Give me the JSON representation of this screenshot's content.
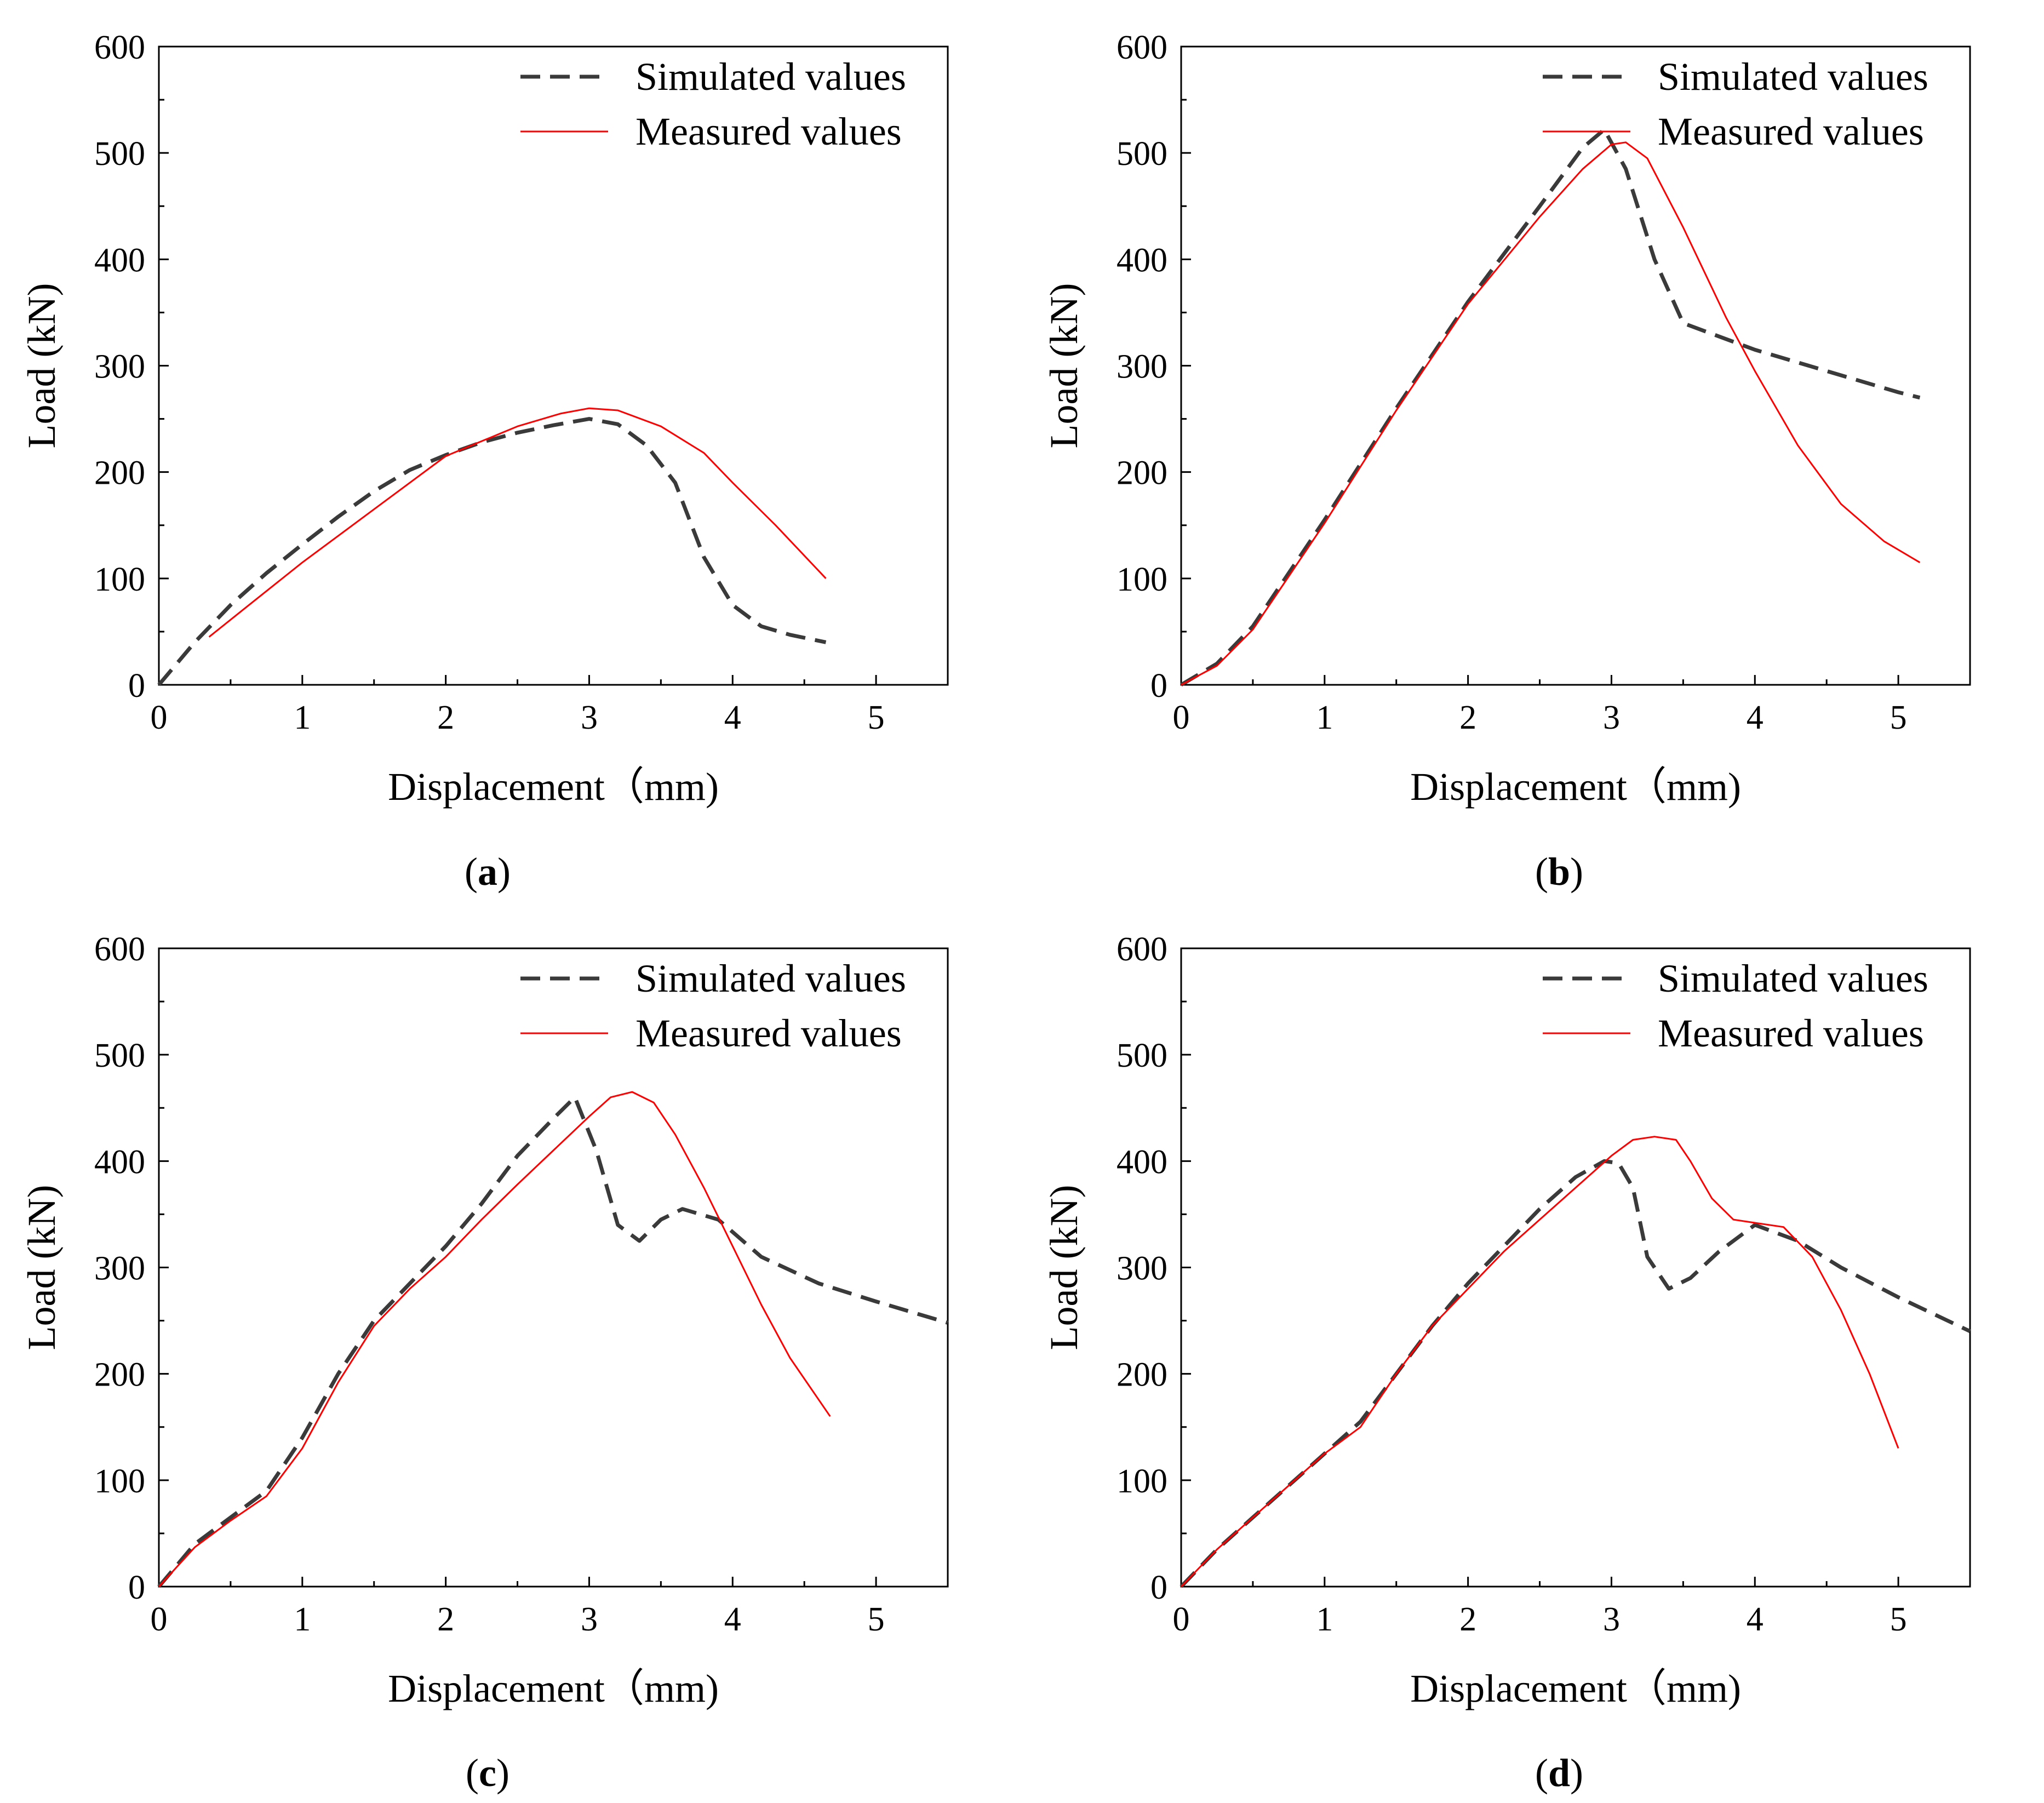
{
  "colors": {
    "simulated": "#3a3a3a",
    "measured": "#ff0000",
    "axis": "#000000"
  },
  "chart_data": [
    {
      "id": "a",
      "type": "line",
      "caption": {
        "open": "(",
        "letter": "a",
        "close": ")"
      },
      "xlabel": "Displacement（mm)",
      "ylabel": "Load (kN)",
      "xlim": [
        0,
        5.5
      ],
      "ylim": [
        0,
        600
      ],
      "xticks": [
        0,
        1,
        2,
        3,
        4,
        5
      ],
      "yticks": [
        0,
        100,
        200,
        300,
        400,
        500,
        600
      ],
      "legend": {
        "position": "top-right",
        "entries": [
          "Simulated values",
          "Measured values"
        ]
      },
      "series": [
        {
          "name": "Simulated values",
          "style": "dashed",
          "x": [
            0,
            0.25,
            0.5,
            0.75,
            1.0,
            1.25,
            1.5,
            1.75,
            2.0,
            2.25,
            2.5,
            2.75,
            3.0,
            3.2,
            3.4,
            3.6,
            3.8,
            4.0,
            4.2,
            4.4,
            4.65
          ],
          "y": [
            0,
            40,
            75,
            105,
            132,
            158,
            182,
            202,
            216,
            228,
            237,
            244,
            250,
            245,
            225,
            190,
            120,
            75,
            55,
            47,
            40
          ]
        },
        {
          "name": "Measured values",
          "style": "solid",
          "x": [
            0.35,
            0.6,
            1.0,
            1.5,
            2.0,
            2.5,
            2.8,
            3.0,
            3.2,
            3.5,
            3.8,
            4.0,
            4.3,
            4.65
          ],
          "y": [
            45,
            72,
            115,
            165,
            215,
            243,
            255,
            260,
            258,
            243,
            218,
            190,
            150,
            100
          ]
        }
      ]
    },
    {
      "id": "b",
      "type": "line",
      "caption": {
        "open": "(",
        "letter": "b",
        "close": ")"
      },
      "xlabel": "Displacement（mm)",
      "ylabel": "Load (kN)",
      "xlim": [
        0,
        5.5
      ],
      "ylim": [
        0,
        600
      ],
      "xticks": [
        0,
        1,
        2,
        3,
        4,
        5
      ],
      "yticks": [
        0,
        100,
        200,
        300,
        400,
        500,
        600
      ],
      "legend": {
        "position": "top-right",
        "entries": [
          "Simulated values",
          "Measured values"
        ]
      },
      "series": [
        {
          "name": "Simulated values",
          "style": "dashed",
          "x": [
            0,
            0.25,
            0.5,
            0.75,
            1.0,
            1.5,
            2.0,
            2.5,
            2.8,
            2.95,
            3.1,
            3.3,
            3.5,
            3.7,
            4.0,
            4.5,
            5.0,
            5.15
          ],
          "y": [
            0,
            20,
            55,
            105,
            155,
            260,
            360,
            450,
            505,
            522,
            485,
            400,
            340,
            330,
            315,
            295,
            275,
            270
          ]
        },
        {
          "name": "Measured values",
          "style": "solid",
          "x": [
            0,
            0.25,
            0.5,
            0.75,
            1.0,
            1.5,
            2.0,
            2.5,
            2.8,
            3.0,
            3.1,
            3.25,
            3.5,
            3.8,
            4.0,
            4.3,
            4.6,
            4.9,
            5.15
          ],
          "y": [
            0,
            18,
            52,
            102,
            152,
            258,
            358,
            440,
            485,
            508,
            510,
            495,
            430,
            345,
            295,
            225,
            170,
            135,
            115
          ]
        }
      ]
    },
    {
      "id": "c",
      "type": "line",
      "caption": {
        "open": "(",
        "letter": "c",
        "close": ")"
      },
      "xlabel": "Displacement（mm)",
      "ylabel": "Load (kN)",
      "xlim": [
        0,
        5.5
      ],
      "ylim": [
        0,
        600
      ],
      "xticks": [
        0,
        1,
        2,
        3,
        4,
        5
      ],
      "yticks": [
        0,
        100,
        200,
        300,
        400,
        500,
        600
      ],
      "legend": {
        "position": "top-right",
        "entries": [
          "Simulated values",
          "Measured values"
        ]
      },
      "series": [
        {
          "name": "Simulated values",
          "style": "dashed",
          "x": [
            0,
            0.25,
            0.5,
            0.75,
            1.0,
            1.25,
            1.5,
            1.75,
            2.0,
            2.25,
            2.5,
            2.75,
            2.9,
            3.05,
            3.2,
            3.35,
            3.5,
            3.65,
            3.9,
            4.2,
            4.6,
            5.0,
            5.5
          ],
          "y": [
            0,
            40,
            65,
            90,
            140,
            200,
            250,
            285,
            320,
            360,
            405,
            440,
            460,
            410,
            340,
            325,
            345,
            355,
            345,
            310,
            285,
            268,
            248
          ]
        },
        {
          "name": "Measured values",
          "style": "solid",
          "x": [
            0,
            0.25,
            0.5,
            0.75,
            1.0,
            1.25,
            1.5,
            1.75,
            2.0,
            2.25,
            2.5,
            2.75,
            3.0,
            3.15,
            3.3,
            3.45,
            3.6,
            3.8,
            4.0,
            4.2,
            4.4,
            4.68
          ],
          "y": [
            0,
            37,
            62,
            85,
            130,
            192,
            245,
            280,
            310,
            345,
            378,
            410,
            442,
            460,
            465,
            455,
            425,
            375,
            320,
            265,
            215,
            160
          ]
        }
      ]
    },
    {
      "id": "d",
      "type": "line",
      "caption": {
        "open": "(",
        "letter": "d",
        "close": ")"
      },
      "xlabel": "Displacement（mm)",
      "ylabel": "Load (kN)",
      "xlim": [
        0,
        5.5
      ],
      "ylim": [
        0,
        600
      ],
      "xticks": [
        0,
        1,
        2,
        3,
        4,
        5
      ],
      "yticks": [
        0,
        100,
        200,
        300,
        400,
        500,
        600
      ],
      "legend": {
        "position": "top-right",
        "entries": [
          "Simulated values",
          "Measured values"
        ]
      },
      "series": [
        {
          "name": "Simulated values",
          "style": "dashed",
          "x": [
            0,
            0.25,
            0.5,
            0.75,
            1.0,
            1.25,
            1.5,
            1.75,
            2.0,
            2.25,
            2.5,
            2.75,
            2.95,
            3.05,
            3.15,
            3.25,
            3.4,
            3.55,
            3.75,
            4.0,
            4.3,
            4.6,
            5.0,
            5.5
          ],
          "y": [
            0,
            35,
            65,
            95,
            125,
            155,
            200,
            245,
            285,
            320,
            355,
            385,
            400,
            398,
            375,
            310,
            280,
            290,
            315,
            340,
            325,
            300,
            272,
            240
          ]
        },
        {
          "name": "Measured values",
          "style": "solid",
          "x": [
            0,
            0.25,
            0.5,
            0.75,
            1.0,
            1.25,
            1.5,
            1.75,
            2.0,
            2.25,
            2.5,
            2.75,
            3.0,
            3.15,
            3.3,
            3.45,
            3.55,
            3.7,
            3.85,
            4.0,
            4.2,
            4.4,
            4.6,
            4.8,
            5.0
          ],
          "y": [
            0,
            35,
            65,
            95,
            125,
            150,
            200,
            245,
            280,
            315,
            345,
            375,
            405,
            420,
            423,
            420,
            400,
            365,
            345,
            342,
            338,
            310,
            260,
            200,
            130
          ]
        }
      ]
    }
  ]
}
